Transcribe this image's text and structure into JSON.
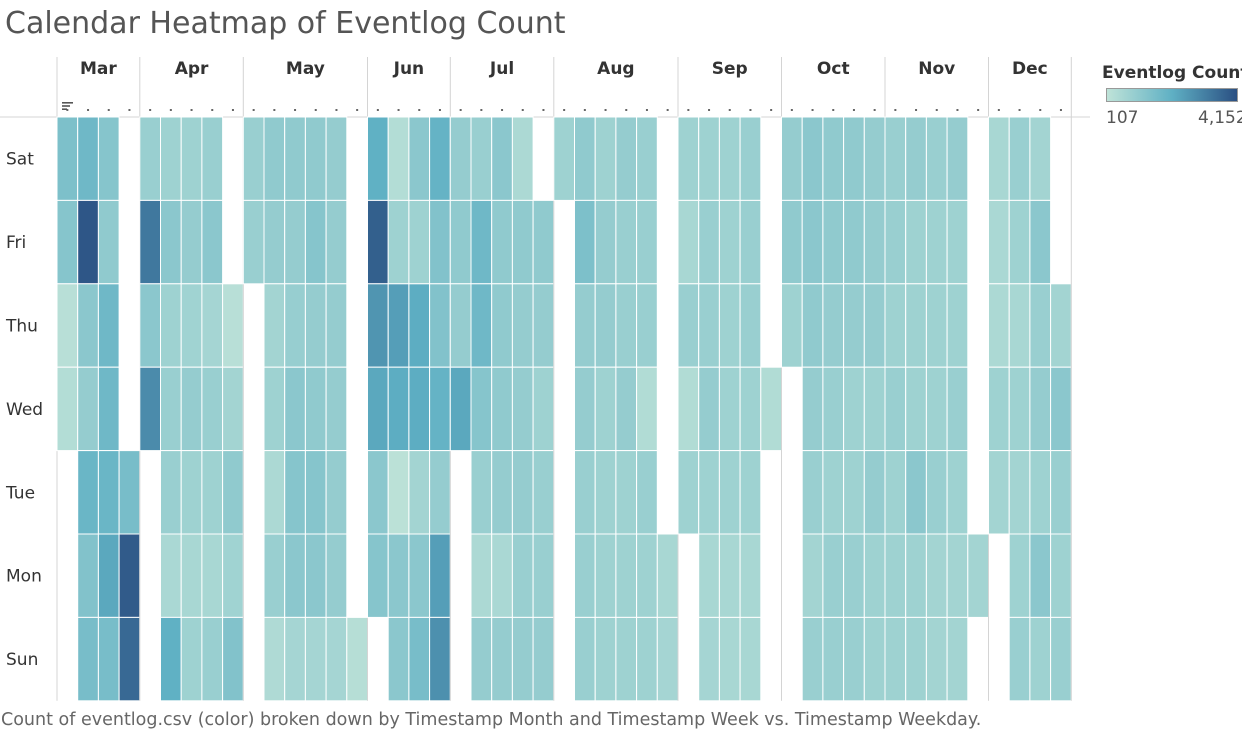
{
  "title": "Calendar Heatmap of Eventlog Count",
  "caption": "Count of eventlog.csv (color) broken down by Timestamp Month and Timestamp Week vs. Timestamp Weekday.",
  "legend": {
    "title": "Eventlog Count",
    "min_label": "107",
    "max_label": "4,152"
  },
  "colors": {
    "low": "#bfe3d8",
    "mid": "#5fb0c4",
    "high": "#2a4f82",
    "grid": "#ffffff",
    "header_line": "#d4d4d4"
  },
  "chart_data": {
    "type": "heatmap",
    "color_range": [
      107,
      4152
    ],
    "weekdays": [
      "Sat",
      "Fri",
      "Thu",
      "Wed",
      "Tue",
      "Mon",
      "Sun"
    ],
    "months": [
      {
        "label": "Mar",
        "weeks": [
          [
            1500,
            1300,
            250,
            350,
            null,
            null,
            null
          ],
          [
            1800,
            4000,
            1200,
            1000,
            1900,
            1400,
            1600
          ],
          [
            1300,
            1100,
            1800,
            1800,
            1900,
            2300,
            1600
          ],
          [
            null,
            null,
            null,
            null,
            1600,
            3900,
            3600
          ]
        ]
      },
      {
        "label": "Apr",
        "weeks": [
          [
            900,
            3300,
            1200,
            2900,
            null,
            null,
            null
          ],
          [
            800,
            1200,
            800,
            900,
            900,
            550,
            2100
          ],
          [
            800,
            1000,
            750,
            1000,
            800,
            600,
            800
          ],
          [
            900,
            1200,
            650,
            900,
            800,
            600,
            900
          ],
          [
            null,
            null,
            250,
            700,
            1100,
            750,
            1400
          ]
        ]
      },
      {
        "label": "May",
        "weeks": [
          [
            900,
            900,
            null,
            null,
            null,
            null,
            null
          ],
          [
            1100,
            1000,
            700,
            800,
            500,
            900,
            450
          ],
          [
            1100,
            1000,
            950,
            1200,
            1300,
            1200,
            650
          ],
          [
            1100,
            1300,
            1000,
            1100,
            1300,
            1200,
            650
          ],
          [
            1000,
            1000,
            1000,
            1000,
            1000,
            1000,
            650
          ],
          [
            null,
            null,
            null,
            null,
            null,
            null,
            300
          ]
        ]
      },
      {
        "label": "Jun",
        "weeks": [
          [
            2100,
            3800,
            2700,
            2300,
            1200,
            1300,
            null
          ],
          [
            350,
            800,
            2500,
            2200,
            200,
            1200,
            1200
          ],
          [
            1200,
            800,
            2200,
            2200,
            700,
            1200,
            1600
          ],
          [
            2000,
            1400,
            1400,
            2000,
            1000,
            2500,
            2800
          ]
        ]
      },
      {
        "label": "Jul",
        "weeks": [
          [
            1000,
            1100,
            1000,
            2300,
            null,
            null,
            null
          ],
          [
            900,
            1800,
            1800,
            1300,
            900,
            500,
            1000
          ],
          [
            1200,
            1100,
            1100,
            1100,
            1000,
            550,
            1000
          ],
          [
            500,
            1100,
            1000,
            1000,
            1000,
            900,
            1000
          ],
          [
            null,
            1100,
            1000,
            800,
            900,
            900,
            1000
          ]
        ]
      },
      {
        "label": "Aug",
        "weeks": [
          [
            800,
            null,
            null,
            null,
            null,
            null,
            null
          ],
          [
            1100,
            1500,
            1000,
            1000,
            900,
            900,
            900
          ],
          [
            800,
            1000,
            1000,
            800,
            800,
            800,
            800
          ],
          [
            1000,
            900,
            900,
            1000,
            800,
            800,
            800
          ],
          [
            900,
            900,
            900,
            400,
            900,
            800,
            800
          ],
          [
            null,
            null,
            null,
            null,
            null,
            600,
            650
          ]
        ]
      },
      {
        "label": "Sep",
        "weeks": [
          [
            800,
            600,
            900,
            400,
            800,
            null,
            null
          ],
          [
            800,
            900,
            900,
            1000,
            800,
            600,
            650
          ],
          [
            800,
            800,
            800,
            800,
            800,
            600,
            600
          ],
          [
            900,
            900,
            900,
            800,
            800,
            600,
            600
          ],
          [
            null,
            null,
            null,
            400,
            null,
            null,
            null
          ]
        ]
      },
      {
        "label": "Oct",
        "weeks": [
          [
            1000,
            1100,
            800,
            null,
            null,
            null,
            null
          ],
          [
            1200,
            1200,
            1100,
            1000,
            900,
            700,
            900
          ],
          [
            1100,
            1100,
            1000,
            900,
            800,
            900,
            900
          ],
          [
            1100,
            1100,
            1000,
            800,
            800,
            900,
            900
          ],
          [
            1000,
            1000,
            1000,
            800,
            1000,
            800,
            800
          ]
        ]
      },
      {
        "label": "Nov",
        "weeks": [
          [
            900,
            900,
            800,
            900,
            800,
            800,
            800
          ],
          [
            1000,
            800,
            800,
            800,
            1200,
            800,
            800
          ],
          [
            900,
            800,
            800,
            800,
            900,
            700,
            700
          ],
          [
            1000,
            800,
            800,
            900,
            800,
            700,
            700
          ],
          [
            null,
            null,
            null,
            null,
            null,
            700,
            null
          ]
        ]
      },
      {
        "label": "Dec",
        "weeks": [
          [
            600,
            550,
            500,
            800,
            700,
            null,
            null
          ],
          [
            900,
            800,
            600,
            800,
            700,
            800,
            900
          ],
          [
            700,
            1200,
            900,
            1000,
            800,
            1200,
            800
          ],
          [
            null,
            null,
            700,
            1200,
            900,
            800,
            900
          ]
        ]
      }
    ]
  }
}
